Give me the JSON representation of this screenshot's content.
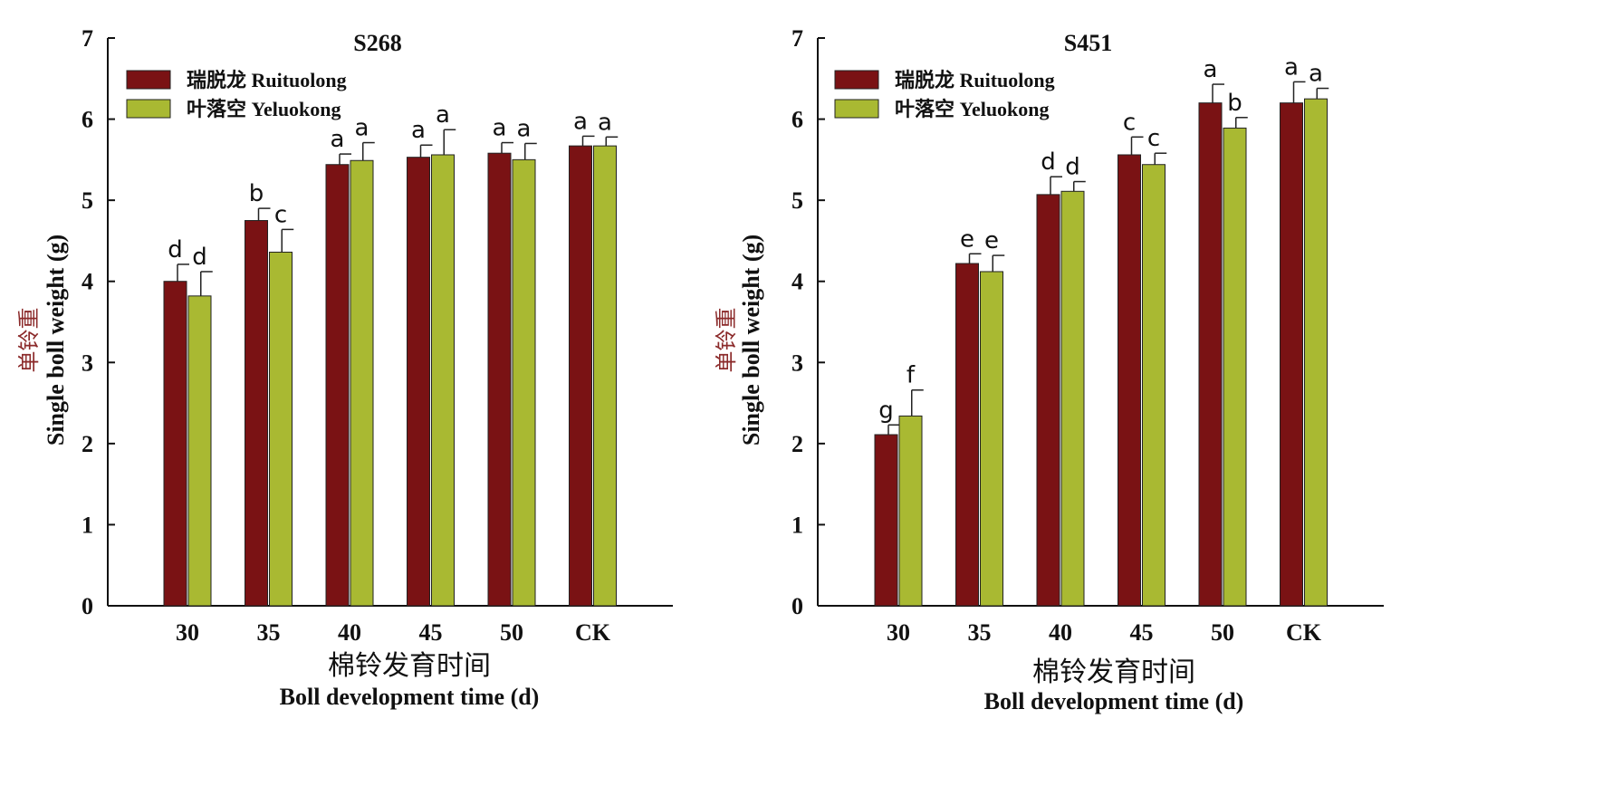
{
  "colors": {
    "ruituolong": "#7a1214",
    "yeluokong": "#a9b932",
    "axis": "#111111"
  },
  "legend": {
    "ruituolong": "瑞脱龙 Ruituolong",
    "yeluokong": "叶落空 Yeluokong"
  },
  "shared": {
    "ylabel_cn": "单铃重",
    "ylabel_en": "Single boll weight (g)",
    "xlabel_cn": "棉铃发育时间",
    "xlabel_en": "Boll development time (d)",
    "yticks": [
      "0",
      "1",
      "2",
      "3",
      "4",
      "5",
      "6",
      "7"
    ]
  },
  "chart_data": [
    {
      "type": "bar",
      "title": "S268",
      "categories": [
        "30",
        "35",
        "40",
        "45",
        "50",
        "CK"
      ],
      "ylim": [
        0,
        7
      ],
      "grid": false,
      "legend_position": "top-left",
      "series": [
        {
          "name": "瑞脱龙 Ruituolong",
          "values": [
            4.0,
            4.75,
            5.44,
            5.53,
            5.58,
            5.67
          ],
          "errors": [
            0.21,
            0.15,
            0.13,
            0.15,
            0.13,
            0.12
          ],
          "letters": [
            "d",
            "b",
            "a",
            "a",
            "a",
            "a"
          ]
        },
        {
          "name": "叶落空 Yeluokong",
          "values": [
            3.82,
            4.36,
            5.49,
            5.56,
            5.5,
            5.67
          ],
          "errors": [
            0.3,
            0.28,
            0.22,
            0.31,
            0.2,
            0.11
          ],
          "letters": [
            "d",
            "c",
            "a",
            "a",
            "a",
            "a"
          ]
        }
      ]
    },
    {
      "type": "bar",
      "title": "S451",
      "categories": [
        "30",
        "35",
        "40",
        "45",
        "50",
        "CK"
      ],
      "ylim": [
        0,
        7
      ],
      "grid": false,
      "legend_position": "top-left",
      "series": [
        {
          "name": "瑞脱龙 Ruituolong",
          "values": [
            2.11,
            4.22,
            5.07,
            5.56,
            6.2,
            6.2
          ],
          "errors": [
            0.12,
            0.12,
            0.22,
            0.22,
            0.23,
            0.26
          ],
          "letters": [
            "g",
            "e",
            "d",
            "c",
            "a",
            "a"
          ]
        },
        {
          "name": "叶落空 Yeluokong",
          "values": [
            2.34,
            4.12,
            5.11,
            5.44,
            5.89,
            6.25
          ],
          "errors": [
            0.32,
            0.2,
            0.12,
            0.14,
            0.13,
            0.13
          ],
          "letters": [
            "f",
            "e",
            "d",
            "c",
            "b",
            "a"
          ]
        }
      ]
    }
  ]
}
